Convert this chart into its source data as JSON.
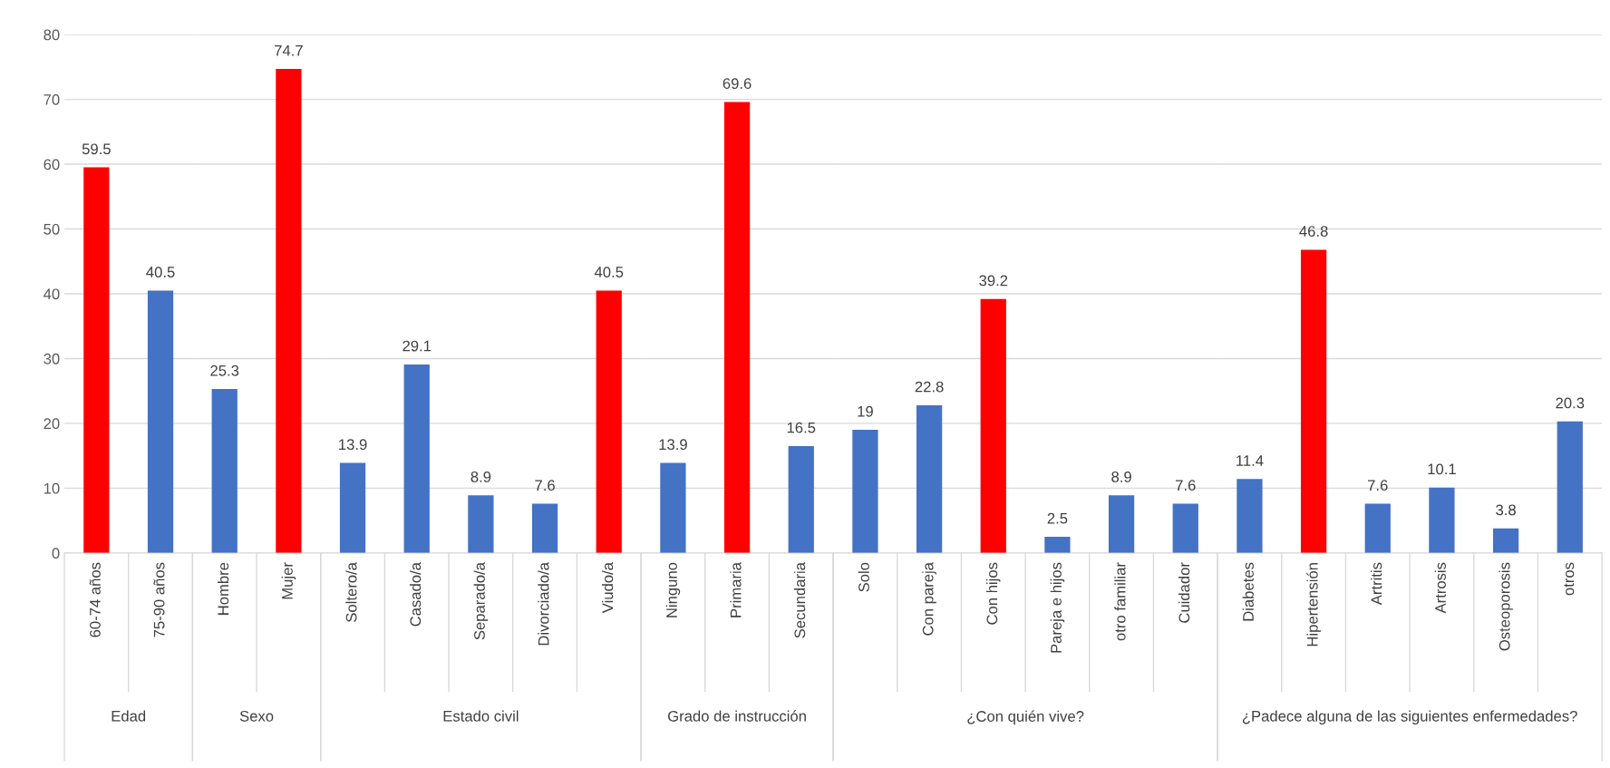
{
  "chart_data": [
    {
      "type": "bar",
      "xlabel": "Edad",
      "categories": [
        "60-74 años",
        "75-90 años"
      ],
      "values": [
        59.5,
        40.5
      ],
      "colors": [
        "#ff0000",
        "#4472c4"
      ],
      "ylim": [
        0,
        80
      ],
      "yticks": [
        0,
        10,
        20,
        30,
        40,
        50,
        60,
        70,
        80
      ],
      "grid": "y",
      "data_labels": true
    },
    {
      "type": "bar",
      "xlabel": "Sexo",
      "categories": [
        "Hombre",
        "Mujer"
      ],
      "values": [
        25.3,
        74.7
      ],
      "colors": [
        "#4472c4",
        "#ff0000"
      ],
      "ylim": [
        0,
        80
      ],
      "yticks": [
        0,
        10,
        20,
        30,
        40,
        50,
        60,
        70,
        80
      ],
      "grid": "y",
      "data_labels": true,
      "tick_labels": "x"
    },
    {
      "type": "bar",
      "xlabel": "Estado civil",
      "categories": [
        "Soltero/a",
        "Casado/a",
        "Separado/a",
        "Divorciado/a",
        "Viudo/a"
      ],
      "values": [
        13.9,
        29.1,
        8.9,
        7.6,
        40.5
      ],
      "colors": [
        "#4472c4",
        "#4472c4",
        "#4472c4",
        "#4472c4",
        "#ff0000"
      ],
      "ylim": [
        0,
        80
      ],
      "yticks": [
        0,
        10,
        20,
        30,
        40,
        50,
        60,
        70,
        80
      ],
      "grid": "y",
      "data_labels": true,
      "tick_labels": "x"
    },
    {
      "type": "bar",
      "xlabel": "Grado de instrucción",
      "categories": [
        "Ninguno",
        "Primaria",
        "Secundaria"
      ],
      "values": [
        13.9,
        69.6,
        16.5
      ],
      "colors": [
        "#4472c4",
        "#ff0000",
        "#4472c4"
      ],
      "ylim": [
        0,
        80
      ],
      "yticks": [
        0,
        10,
        20,
        30,
        40,
        50,
        60,
        70,
        80
      ],
      "grid": "y",
      "data_labels": true,
      "tick_labels": "x"
    },
    {
      "type": "bar",
      "xlabel": "¿Con quién vive?",
      "categories": [
        "Solo",
        "Con pareja",
        "Con hijos",
        "Pareja e hijos",
        "otro familiar",
        "Cuidador"
      ],
      "values": [
        19,
        22.8,
        39.2,
        2.5,
        8.9,
        7.6
      ],
      "colors": [
        "#4472c4",
        "#4472c4",
        "#ff0000",
        "#4472c4",
        "#4472c4",
        "#4472c4"
      ],
      "ylim": [
        0,
        80
      ],
      "yticks": [
        0,
        10,
        20,
        30,
        40,
        50,
        60,
        70,
        80
      ],
      "grid": "y",
      "data_labels": true,
      "tick_labels": "x"
    },
    {
      "type": "bar",
      "xlabel": "¿Padece alguna de las siguientes enfermedades?",
      "categories": [
        "Diabetes",
        "Hipertensión",
        "Artritis",
        "Artrosis",
        "Osteoporosis",
        "otros"
      ],
      "values": [
        11.4,
        46.8,
        7.6,
        10.1,
        3.8,
        20.3
      ],
      "colors": [
        "#4472c4",
        "#ff0000",
        "#4472c4",
        "#4472c4",
        "#4472c4",
        "#4472c4"
      ],
      "ylim": [
        0,
        80
      ],
      "yticks": [
        0,
        10,
        20,
        30,
        40,
        50,
        60,
        70,
        80
      ],
      "grid": "y",
      "data_labels": true,
      "tick_labels": "x"
    }
  ]
}
